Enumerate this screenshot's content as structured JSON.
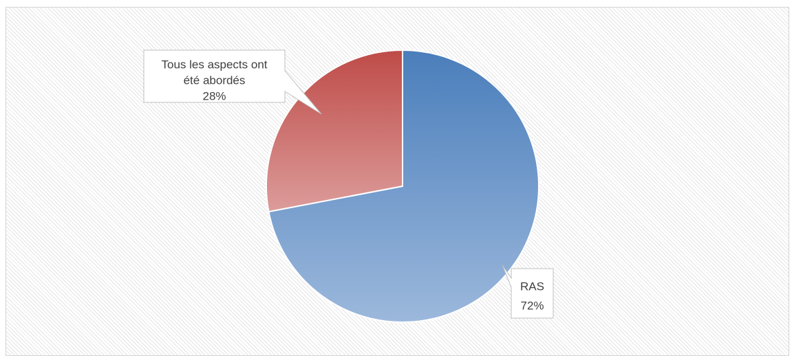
{
  "chart_data": {
    "type": "pie",
    "categories": [
      "RAS",
      "Tous les aspects ont été abordés"
    ],
    "values": [
      72,
      28
    ],
    "unit": "%",
    "colors": [
      "#4f81bd",
      "#c0504d"
    ],
    "data_labels": [
      {
        "lines": [
          "RAS",
          "72%"
        ]
      },
      {
        "lines": [
          "Tous les aspects ont",
          "été abordés",
          "28%"
        ]
      }
    ]
  }
}
